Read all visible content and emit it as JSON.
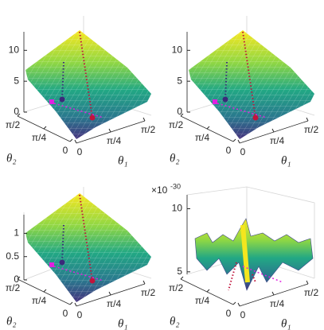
{
  "chart_data": [
    {
      "type": "surface",
      "xlabel": "θ₁",
      "ylabel": "θ₂",
      "xlim": [
        0,
        1.5708
      ],
      "ylim": [
        0,
        1.5708
      ],
      "xticks": [
        0,
        {
          "value": 0.7854,
          "label": "π/4"
        },
        {
          "value": 1.5708,
          "label": "π/2"
        }
      ],
      "yticks": [
        0,
        {
          "value": 0.7854,
          "label": "π/4"
        },
        {
          "value": 1.5708,
          "label": "π/2"
        }
      ],
      "zlim": [
        0,
        13
      ],
      "zticks": [
        0,
        5,
        10
      ]
    },
    {
      "type": "surface",
      "xlabel": "θ₁",
      "ylabel": "θ₂",
      "xlim": [
        0,
        1.5708
      ],
      "ylim": [
        0,
        1.5708
      ],
      "xticks": [
        0,
        {
          "value": 0.7854,
          "label": "π/4"
        },
        {
          "value": 1.5708,
          "label": "π/2"
        }
      ],
      "yticks": [
        0,
        {
          "value": 0.7854,
          "label": "π/4"
        },
        {
          "value": 1.5708,
          "label": "π/2"
        }
      ],
      "zlim": [
        0,
        13
      ],
      "zticks": [
        0,
        5,
        10
      ]
    },
    {
      "type": "surface",
      "xlabel": "θ₁",
      "ylabel": "θ₂",
      "xlim": [
        0,
        1.5708
      ],
      "ylim": [
        0,
        1.5708
      ],
      "xticks": [
        0,
        {
          "value": 0.7854,
          "label": "π/4"
        },
        {
          "value": 1.5708,
          "label": "π/2"
        }
      ],
      "yticks": [
        0,
        {
          "value": 0.7854,
          "label": "π/4"
        },
        {
          "value": 1.5708,
          "label": "π/2"
        }
      ],
      "zlim": [
        0,
        1.4
      ],
      "zticks": [
        0,
        0.5,
        1
      ]
    },
    {
      "type": "surface",
      "xlabel": "θ₁",
      "ylabel": "θ₂",
      "xlim": [
        0,
        1.5708
      ],
      "ylim": [
        0,
        1.5708
      ],
      "xticks": [
        0,
        {
          "value": 0.7854,
          "label": "π/4"
        },
        {
          "value": 1.5708,
          "label": "π/2"
        }
      ],
      "yticks": [
        0,
        {
          "value": 0.7854,
          "label": "π/4"
        },
        {
          "value": 1.5708,
          "label": "π/2"
        }
      ],
      "zlim": [
        4.8,
        11.1
      ],
      "zticks": [
        5,
        10
      ],
      "zscale_base": "×10",
      "zscale_exponent": "-30"
    }
  ]
}
